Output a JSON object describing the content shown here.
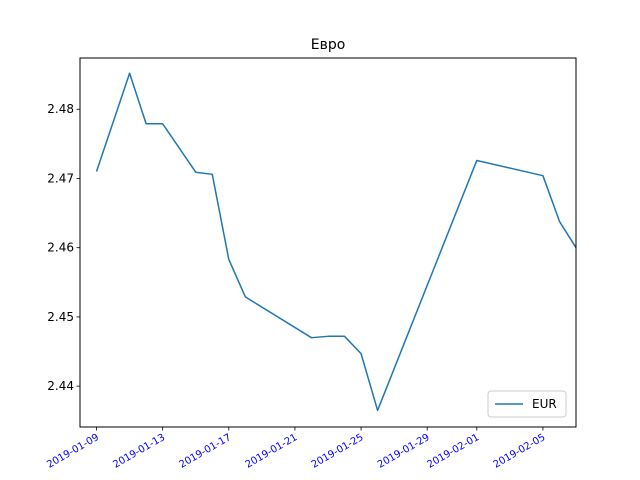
{
  "chart_data": {
    "type": "line",
    "title": "Евро",
    "xlabel": "",
    "ylabel": "",
    "x": [
      "2019-01-09",
      "2019-01-11",
      "2019-01-12",
      "2019-01-13",
      "2019-01-15",
      "2019-01-16",
      "2019-01-17",
      "2019-01-18",
      "2019-01-22",
      "2019-01-23",
      "2019-01-24",
      "2019-01-25",
      "2019-01-26",
      "2019-02-01",
      "2019-02-05",
      "2019-02-06",
      "2019-02-07"
    ],
    "series": [
      {
        "name": "EUR",
        "color": "#1f77b4",
        "values": [
          2.471,
          2.4852,
          2.4779,
          2.4779,
          2.4709,
          2.4706,
          2.4583,
          2.4529,
          2.447,
          2.4472,
          2.4472,
          2.4447,
          2.4365,
          2.4726,
          2.4704,
          2.4638,
          2.46
        ]
      }
    ],
    "xticks": [
      "2019-01-09",
      "2019-01-13",
      "2019-01-17",
      "2019-01-21",
      "2019-01-25",
      "2019-01-29",
      "2019-02-01",
      "2019-02-05"
    ],
    "yticks": [
      "2.44",
      "2.45",
      "2.46",
      "2.47",
      "2.48"
    ],
    "xlim": [
      "2019-01-08",
      "2019-02-07"
    ],
    "ylim": [
      2.4341,
      2.4874
    ],
    "grid": false,
    "legend_position": "lower-right",
    "tick_label_color": "#0000ff",
    "xtick_rotation": 30
  }
}
